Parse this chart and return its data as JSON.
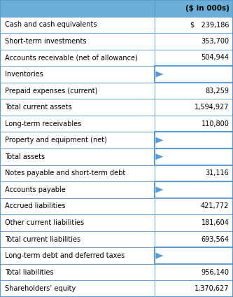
{
  "header": [
    "",
    "($ in 000s)"
  ],
  "rows": [
    {
      "label": "Cash and cash equivalents",
      "value": "$   239,186",
      "blank": false
    },
    {
      "label": "Short-term investments",
      "value": "353,700",
      "blank": false
    },
    {
      "label": "Accounts receivable (net of allowance)",
      "value": "504,944",
      "blank": false
    },
    {
      "label": "Inventories",
      "value": "",
      "blank": true
    },
    {
      "label": "Prepaid expenses (current)",
      "value": "83,259",
      "blank": false
    },
    {
      "label": "Total current assets",
      "value": "1,594,927",
      "blank": false
    },
    {
      "label": "Long-term receivables",
      "value": "110,800",
      "blank": false
    },
    {
      "label": "Property and equipment (net)",
      "value": "",
      "blank": true
    },
    {
      "label": "Total assets",
      "value": "",
      "blank": true
    },
    {
      "label": "Notes payable and short-term debt",
      "value": "31,116",
      "blank": false
    },
    {
      "label": "Accounts payable",
      "value": "",
      "blank": true
    },
    {
      "label": "Accrued liabilities",
      "value": "421,772",
      "blank": false
    },
    {
      "label": "Other current liabilities",
      "value": "181,604",
      "blank": false
    },
    {
      "label": "Total current liabilities",
      "value": "693,564",
      "blank": false
    },
    {
      "label": "Long-term debt and deferred taxes",
      "value": "",
      "blank": true
    },
    {
      "label": "Total liabilities",
      "value": "956,140",
      "blank": false
    },
    {
      "label": "Shareholders’ equity",
      "value": "1,370,627",
      "blank": false
    }
  ],
  "header_bg": "#6BAED6",
  "row_bg_white": "#FFFFFF",
  "blank_cell_bg": "#FFFFFF",
  "grid_color": "#5B9BD5",
  "header_text_color": "#000000",
  "row_text_color": "#000000",
  "col_split": 0.665,
  "fig_width": 3.33,
  "fig_height": 4.24,
  "dpi": 100,
  "n_total_rows": 18,
  "label_fontsize": 7.0,
  "value_fontsize": 7.0,
  "header_fontsize": 7.5,
  "tri_color": "#5B9BD5",
  "border_lw": 0.6
}
